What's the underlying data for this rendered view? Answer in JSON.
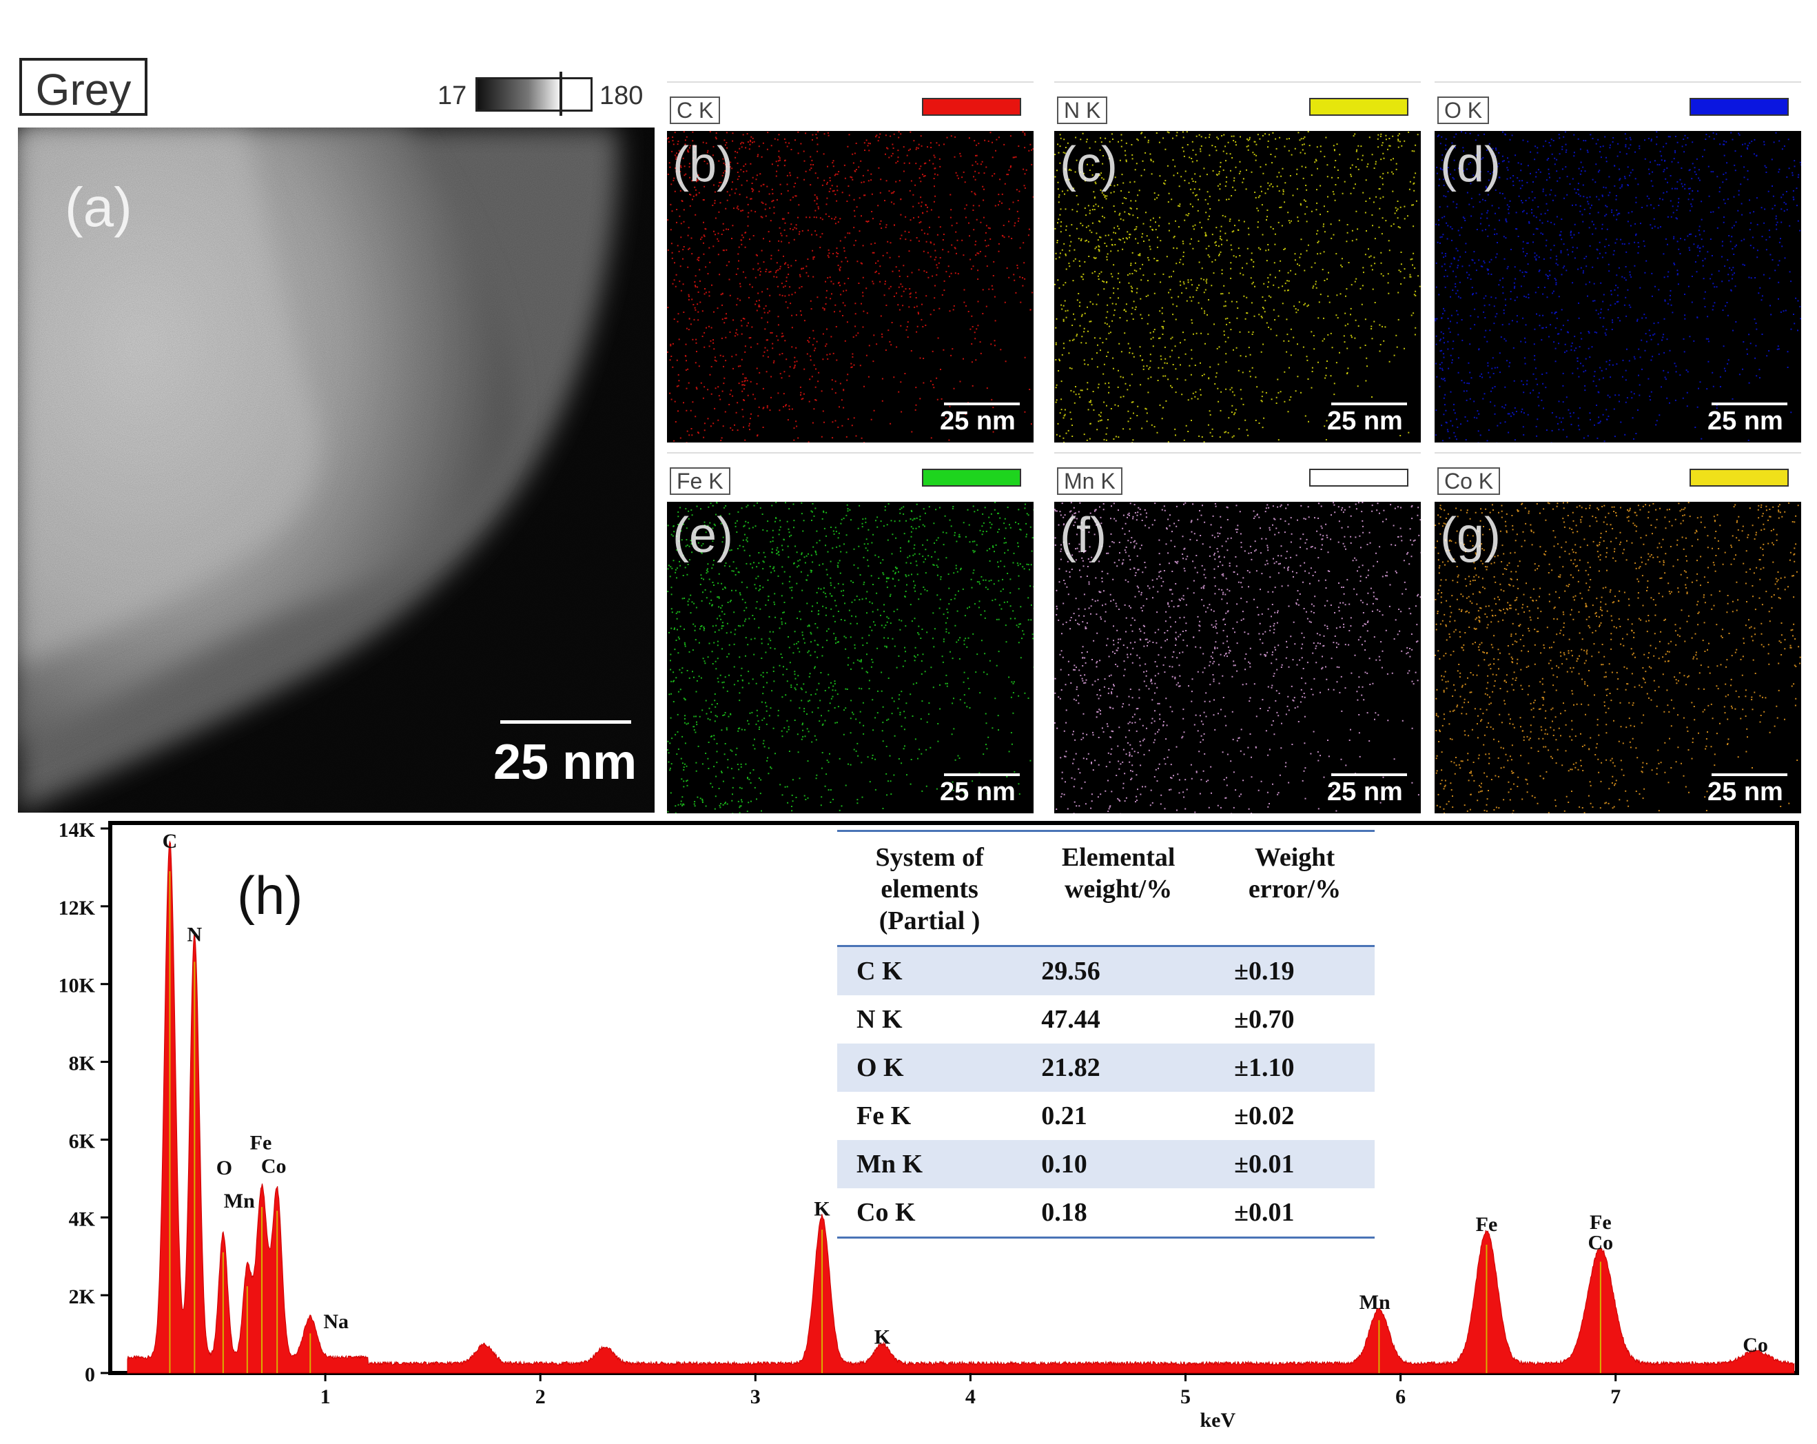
{
  "panel_a": {
    "mode_label": "Grey",
    "colorbar_min": "17",
    "colorbar_max": "180",
    "letter": "(a)",
    "scale_bar": "25 nm"
  },
  "maps": [
    {
      "tag": "C K",
      "letter": "(b)",
      "scale_bar": "25 nm",
      "color": "#e8140f"
    },
    {
      "tag": "N K",
      "letter": "(c)",
      "scale_bar": "25 nm",
      "color": "#e6e60c"
    },
    {
      "tag": "O K",
      "letter": "(d)",
      "scale_bar": "25 nm",
      "color": "#0a16e0"
    },
    {
      "tag": "Fe K",
      "letter": "(e)",
      "scale_bar": "25 nm",
      "color": "#1ed41e"
    },
    {
      "tag": "Mn K",
      "letter": "(f)",
      "scale_bar": "25 nm",
      "color": "#ffffff",
      "dot_color": "#e8a8e8"
    },
    {
      "tag": "Co K",
      "letter": "(g)",
      "scale_bar": "25 nm",
      "color": "#f0e01a",
      "dot_color": "#f0a020"
    }
  ],
  "chart_data": {
    "type": "line",
    "title": "",
    "panel_label": "(h)",
    "xlabel": "keV",
    "ylabel": "",
    "xlim": [
      0.0,
      7.85
    ],
    "ylim": [
      0,
      14000
    ],
    "x_ticks": [
      "1",
      "2",
      "3",
      "4",
      "5",
      "6",
      "7"
    ],
    "y_ticks": [
      "0",
      "2K",
      "4K",
      "6K",
      "8K",
      "10K",
      "12K",
      "14K"
    ],
    "baseline": 250,
    "series": [
      {
        "name": "EDS spectrum",
        "peaks": [
          {
            "keV": 0.277,
            "counts": 13300,
            "width": 0.025
          },
          {
            "keV": 0.392,
            "counts": 10900,
            "width": 0.022
          },
          {
            "keV": 0.525,
            "counts": 3200,
            "width": 0.02
          },
          {
            "keV": 0.637,
            "counts": 2300,
            "width": 0.02
          },
          {
            "keV": 0.705,
            "counts": 4400,
            "width": 0.025
          },
          {
            "keV": 0.776,
            "counts": 4300,
            "width": 0.022
          },
          {
            "keV": 0.93,
            "counts": 1050,
            "width": 0.03
          },
          {
            "keV": 1.74,
            "counts": 480,
            "width": 0.04
          },
          {
            "keV": 2.3,
            "counts": 420,
            "width": 0.04
          },
          {
            "keV": 3.31,
            "counts": 3800,
            "width": 0.035
          },
          {
            "keV": 3.59,
            "counts": 500,
            "width": 0.035
          },
          {
            "keV": 5.9,
            "counts": 1400,
            "width": 0.045
          },
          {
            "keV": 6.4,
            "counts": 3400,
            "width": 0.05
          },
          {
            "keV": 6.93,
            "counts": 2950,
            "width": 0.06
          },
          {
            "keV": 7.65,
            "counts": 320,
            "width": 0.06
          }
        ]
      }
    ],
    "annotations": [
      {
        "text": "C",
        "keV": 0.277,
        "counts": 13500
      },
      {
        "text": "N",
        "keV": 0.392,
        "counts": 11100
      },
      {
        "text": "O",
        "keV": 0.53,
        "counts": 5100
      },
      {
        "text": "Mn",
        "keV": 0.6,
        "counts": 4250
      },
      {
        "text": "Fe",
        "keV": 0.7,
        "counts": 5750
      },
      {
        "text": "Co",
        "keV": 0.76,
        "counts": 5150
      },
      {
        "text": "Na",
        "keV": 1.05,
        "counts": 1150
      },
      {
        "text": "K",
        "keV": 3.31,
        "counts": 4050
      },
      {
        "text": "K",
        "keV": 3.59,
        "counts": 750
      },
      {
        "text": "Mn",
        "keV": 5.88,
        "counts": 1650
      },
      {
        "text": "Fe",
        "keV": 6.4,
        "counts": 3650
      },
      {
        "text": "Fe",
        "keV": 6.93,
        "counts": 3700
      },
      {
        "text": "Co",
        "keV": 6.93,
        "counts": 3180
      },
      {
        "text": "Co",
        "keV": 7.65,
        "counts": 550
      }
    ],
    "table": {
      "headers": [
        "System of\nelements\n(Partial )",
        "Elemental\nweight/%",
        "Weight\nerror/%"
      ],
      "rows": [
        {
          "element": "C  K",
          "weight": "29.56",
          "error": "±0.19"
        },
        {
          "element": "N  K",
          "weight": "47.44",
          "error": "±0.70"
        },
        {
          "element": "O  K",
          "weight": "21.82",
          "error": "±1.10"
        },
        {
          "element": "Fe K",
          "weight": "0.21",
          "error": "±0.02"
        },
        {
          "element": "Mn K",
          "weight": "0.10",
          "error": "±0.01"
        },
        {
          "element": "Co K",
          "weight": "0.18",
          "error": "±0.01"
        }
      ]
    }
  }
}
